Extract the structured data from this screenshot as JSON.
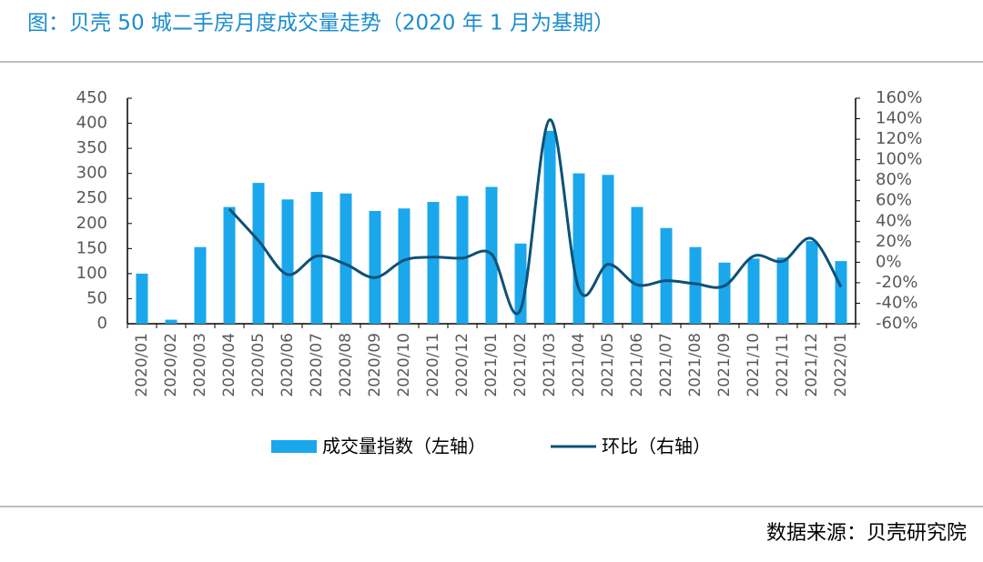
{
  "chart_data": {
    "type": "bar_line",
    "title": "图：贝壳 50 城二手房月度成交量走势（2020 年 1 月为基期）",
    "source": "数据来源：贝壳研究院",
    "categories": [
      "2020/01",
      "2020/02",
      "2020/03",
      "2020/04",
      "2020/05",
      "2020/06",
      "2020/07",
      "2020/08",
      "2020/09",
      "2020/10",
      "2020/11",
      "2020/12",
      "2021/01",
      "2021/02",
      "2021/03",
      "2021/04",
      "2021/05",
      "2021/06",
      "2021/07",
      "2021/08",
      "2021/09",
      "2021/10",
      "2021/11",
      "2021/12",
      "2022/01"
    ],
    "series": [
      {
        "name": "成交量指数（左轴）",
        "color": "#1aa7ec",
        "type": "bar",
        "values": [
          100,
          8,
          153,
          233,
          281,
          248,
          263,
          260,
          225,
          230,
          243,
          255,
          273,
          160,
          385,
          300,
          297,
          233,
          191,
          153,
          122,
          130,
          132,
          165,
          125
        ]
      },
      {
        "name": "环比（右轴）",
        "color": "#0d5176",
        "type": "line",
        "axis": "y2",
        "values": [
          null,
          null,
          null,
          52,
          21,
          -12,
          6,
          -2,
          -15,
          2,
          5,
          4,
          8,
          -46,
          139,
          -26,
          -2,
          -22,
          -18,
          -21,
          -23,
          6,
          1,
          23,
          -24
        ]
      }
    ],
    "ylim": [
      0,
      450
    ],
    "yticks": [
      0,
      50,
      100,
      150,
      200,
      250,
      300,
      350,
      400,
      450
    ],
    "y2lim": [
      -60,
      160
    ],
    "y2ticks": [
      {
        "value": -60,
        "label": "-60%"
      },
      {
        "value": -40,
        "label": "-40%"
      },
      {
        "value": -20,
        "label": "-20%"
      },
      {
        "value": 0,
        "label": "0%"
      },
      {
        "value": 20,
        "label": "20%"
      },
      {
        "value": 40,
        "label": "40%"
      },
      {
        "value": 60,
        "label": "60%"
      },
      {
        "value": 80,
        "label": "80%"
      },
      {
        "value": 100,
        "label": "100%"
      },
      {
        "value": 120,
        "label": "120%"
      },
      {
        "value": 140,
        "label": "140%"
      },
      {
        "value": 160,
        "label": "160%"
      }
    ],
    "legend": "bottom"
  }
}
